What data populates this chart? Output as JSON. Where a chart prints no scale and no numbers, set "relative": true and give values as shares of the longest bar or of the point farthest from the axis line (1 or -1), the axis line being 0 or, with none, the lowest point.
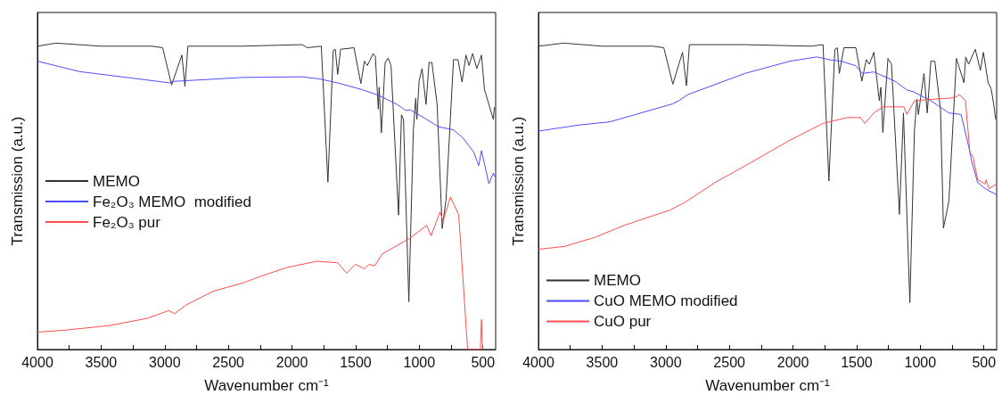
{
  "chart_data": [
    {
      "type": "line",
      "relative": true,
      "xlabel": "Wavenumber cm⁻¹",
      "ylabel": "Transmission (a.u.)",
      "xlim": [
        4000,
        400
      ],
      "xticks": [
        4000,
        {
          "value": 3750,
          "label": null
        },
        3500,
        {
          "value": 3250,
          "label": null
        },
        3000,
        {
          "value": 2750,
          "label": null
        },
        2500,
        {
          "value": 2250,
          "label": null
        },
        2000,
        {
          "value": 1750,
          "label": null
        },
        1500,
        {
          "value": 1250,
          "label": null
        },
        1000,
        {
          "value": 750,
          "label": null
        },
        500
      ],
      "tick_labels": "x",
      "legend": "left",
      "marker": "none",
      "line_style": "solid",
      "series": [
        {
          "name": "MEMO",
          "color": "#333333",
          "x": [
            4000,
            3855,
            3500,
            3100,
            3016,
            2946,
            2865,
            2841,
            2818,
            2400,
            1921,
            1880,
            1770,
            1718,
            1676,
            1660,
            1641,
            1618,
            1513,
            1459,
            1431,
            1408,
            1362,
            1345,
            1322,
            1315,
            1298,
            1268,
            1245,
            1222,
            1163,
            1140,
            1124,
            1082,
            1047,
            1028,
            1019,
            1001,
            978,
            947,
            923,
            901,
            860,
            820,
            790,
            731,
            696,
            664,
            633,
            609,
            581,
            548,
            511,
            488,
            453,
            418,
            410
          ],
          "values": [
            0.99,
            1.0,
            0.99,
            0.99,
            0.985,
            0.863,
            0.961,
            0.859,
            0.99,
            0.99,
            0.995,
            0.985,
            0.99,
            0.546,
            0.976,
            0.98,
            0.898,
            0.98,
            0.985,
            0.868,
            0.941,
            0.927,
            0.966,
            0.956,
            0.785,
            0.856,
            0.707,
            0.937,
            0.951,
            0.927,
            0.439,
            0.766,
            0.751,
            0.156,
            0.712,
            0.82,
            0.751,
            0.878,
            0.917,
            0.8,
            0.937,
            0.937,
            0.8,
            0.395,
            0.488,
            0.946,
            0.946,
            0.873,
            0.961,
            0.927,
            0.966,
            0.917,
            0.961,
            0.849,
            0.8,
            0.751,
            0.79
          ]
        },
        {
          "name": "Fe₂O₃ MEMO  modified",
          "color": "#4d4dff",
          "x": [
            4000,
            3669,
            3203,
            2958,
            2941,
            2807,
            2387,
            1921,
            1781,
            1641,
            1455,
            1315,
            1175,
            1105,
            1070,
            942,
            849,
            732,
            662,
            572,
            533,
            511,
            453,
            418,
            410
          ],
          "values": [
            0.941,
            0.907,
            0.883,
            0.87,
            0.875,
            0.878,
            0.888,
            0.89,
            0.883,
            0.87,
            0.849,
            0.829,
            0.8,
            0.78,
            0.782,
            0.751,
            0.727,
            0.717,
            0.693,
            0.644,
            0.6,
            0.649,
            0.541,
            0.576,
            0.566
          ]
        },
        {
          "name": "Fe₂O₃ pur",
          "color": "#ff4d4d",
          "x": [
            4000,
            3786,
            3436,
            3133,
            2970,
            2923,
            2830,
            2620,
            2364,
            2247,
            2037,
            1804,
            1641,
            1571,
            1501,
            1431,
            1396,
            1350,
            1291,
            1082,
            942,
            907,
            837,
            813,
            755,
            690,
            620,
            520,
            511,
            503
          ],
          "values": [
            0.057,
            0.063,
            0.078,
            0.102,
            0.127,
            0.117,
            0.146,
            0.19,
            0.22,
            0.239,
            0.268,
            0.288,
            0.283,
            0.249,
            0.278,
            0.263,
            0.278,
            0.273,
            0.312,
            0.361,
            0.405,
            0.371,
            0.449,
            0.42,
            0.498,
            0.439,
            0.0,
            0.0,
            0.098,
            0.0
          ]
        }
      ]
    },
    {
      "type": "line",
      "relative": true,
      "xlabel": "Wavenumber cm⁻¹",
      "ylabel": "Transmission (a.u.)",
      "xlim": [
        4000,
        400
      ],
      "xticks": [
        4000,
        {
          "value": 3750,
          "label": null
        },
        3500,
        {
          "value": 3250,
          "label": null
        },
        3000,
        {
          "value": 2750,
          "label": null
        },
        2500,
        {
          "value": 2250,
          "label": null
        },
        2000,
        {
          "value": 1750,
          "label": null
        },
        1500,
        {
          "value": 1250,
          "label": null
        },
        1000,
        {
          "value": 750,
          "label": null
        },
        500
      ],
      "tick_labels": "x",
      "legend": "bottom left",
      "marker": "none",
      "line_style": "solid",
      "series": [
        {
          "name": "MEMO",
          "color": "#333333",
          "x": [
            4000,
            3800,
            3500,
            3100,
            3015,
            2944,
            2868,
            2837,
            2814,
            2378,
            1858,
            1764,
            1718,
            1671,
            1652,
            1636,
            1600,
            1506,
            1459,
            1424,
            1400,
            1365,
            1322,
            1310,
            1294,
            1254,
            1226,
            1164,
            1132,
            1082,
            1046,
            1027,
            1015,
            971,
            945,
            917,
            886,
            841,
            818,
            775,
            716,
            657,
            643,
            620,
            568,
            528,
            504,
            467,
            443,
            420,
            408
          ],
          "values": [
            0.99,
            1.0,
            0.99,
            0.99,
            0.985,
            0.866,
            0.97,
            0.861,
            0.995,
            0.995,
            0.99,
            0.995,
            0.55,
            0.98,
            0.985,
            0.901,
            0.985,
            0.985,
            0.876,
            0.946,
            0.931,
            0.97,
            0.812,
            0.856,
            0.708,
            0.95,
            0.931,
            0.441,
            0.772,
            0.153,
            0.713,
            0.817,
            0.767,
            0.901,
            0.772,
            0.941,
            0.941,
            0.782,
            0.396,
            0.485,
            0.95,
            0.871,
            0.955,
            0.931,
            0.98,
            0.911,
            0.97,
            0.871,
            0.851,
            0.792,
            0.752
          ]
        },
        {
          "name": "CuO MEMO modified",
          "color": "#4d4dff",
          "x": [
            4000,
            3675,
            3439,
            2944,
            2897,
            2826,
            2378,
            2025,
            1812,
            1718,
            1622,
            1506,
            1454,
            1365,
            1200,
            1105,
            1058,
            917,
            775,
            679,
            620,
            596,
            549,
            490,
            400
          ],
          "values": [
            0.713,
            0.733,
            0.743,
            0.802,
            0.812,
            0.832,
            0.901,
            0.941,
            0.955,
            0.946,
            0.941,
            0.926,
            0.901,
            0.906,
            0.876,
            0.847,
            0.842,
            0.812,
            0.772,
            0.767,
            0.663,
            0.614,
            0.545,
            0.525,
            0.505
          ]
        },
        {
          "name": "CuO pur",
          "color": "#ff4d4d",
          "x": [
            4000,
            3792,
            3557,
            3321,
            2967,
            2850,
            2613,
            2378,
            2025,
            1764,
            1575,
            1471,
            1436,
            1365,
            1294,
            1129,
            1105,
            1046,
            893,
            728,
            693,
            645,
            610,
            586,
            549,
            490,
            483,
            460,
            400
          ],
          "values": [
            0.327,
            0.337,
            0.366,
            0.406,
            0.455,
            0.48,
            0.545,
            0.599,
            0.683,
            0.738,
            0.757,
            0.757,
            0.738,
            0.772,
            0.792,
            0.792,
            0.767,
            0.812,
            0.817,
            0.822,
            0.832,
            0.812,
            0.644,
            0.629,
            0.554,
            0.54,
            0.554,
            0.525,
            0.54
          ]
        }
      ]
    }
  ]
}
